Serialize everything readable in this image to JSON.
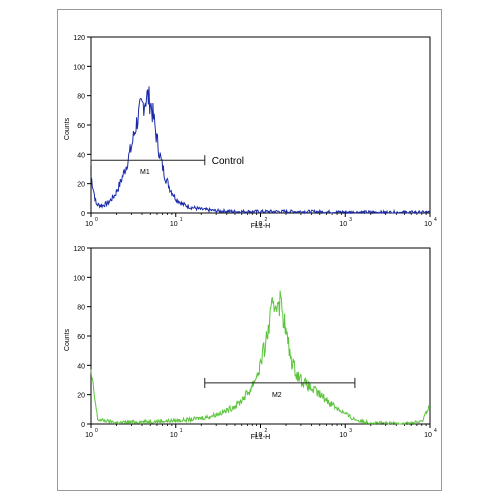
{
  "colors": {
    "top_series": "#1a2aa8",
    "bottom_series": "#5cc43c",
    "axis": "#000000",
    "frame": "#9a9a9a"
  },
  "chart_data": [
    {
      "type": "line",
      "title": "",
      "xlabel": "FL1-H",
      "ylabel": "Counts",
      "x_scale": "log",
      "xlim": [
        1,
        10000
      ],
      "ylim": [
        0,
        120
      ],
      "x_ticks": [
        {
          "base": "10",
          "exp": "0"
        },
        {
          "base": "10",
          "exp": "1"
        },
        {
          "base": "10",
          "exp": "2"
        },
        {
          "base": "10",
          "exp": "3"
        },
        {
          "base": "10",
          "exp": "4"
        }
      ],
      "y_ticks": [
        "0",
        "20",
        "40",
        "60",
        "80",
        "100",
        "120"
      ],
      "gate": {
        "label": "M1",
        "x_start": 1.0,
        "x_end": 22,
        "y": 36
      },
      "annotation": "Control",
      "series": [
        {
          "color": "#1a2aa8",
          "x": [
            1.0,
            1.15,
            1.35,
            1.6,
            1.9,
            2.2,
            2.6,
            3.0,
            3.4,
            3.8,
            4.2,
            4.6,
            5.0,
            5.5,
            6.0,
            6.8,
            7.6,
            8.5,
            10,
            12,
            15,
            20,
            30,
            50,
            100,
            300,
            1000,
            3000,
            10000
          ],
          "y": [
            25,
            6,
            5,
            7,
            12,
            20,
            32,
            45,
            60,
            70,
            75,
            80,
            76,
            64,
            50,
            34,
            24,
            17,
            10,
            6,
            4,
            2.5,
            1.5,
            1,
            1,
            1,
            0.6,
            0.5,
            0.5
          ]
        }
      ]
    },
    {
      "type": "line",
      "title": "",
      "xlabel": "FL1-H",
      "ylabel": "Counts",
      "x_scale": "log",
      "xlim": [
        1,
        10000
      ],
      "ylim": [
        0,
        120
      ],
      "x_ticks": [
        {
          "base": "10",
          "exp": "0"
        },
        {
          "base": "10",
          "exp": "1"
        },
        {
          "base": "10",
          "exp": "2"
        },
        {
          "base": "10",
          "exp": "3"
        },
        {
          "base": "10",
          "exp": "4"
        }
      ],
      "y_ticks": [
        "0",
        "20",
        "40",
        "60",
        "80",
        "100",
        "120"
      ],
      "gate": {
        "label": "M2",
        "x_start": 22,
        "x_end": 1300,
        "y": 28
      },
      "annotation": "",
      "series": [
        {
          "color": "#5cc43c",
          "x": [
            1.0,
            1.2,
            2,
            4,
            8,
            15,
            25,
            40,
            55,
            75,
            95,
            115,
            135,
            160,
            180,
            200,
            230,
            270,
            330,
            400,
            500,
            650,
            800,
            1000,
            1200,
            1500,
            2000,
            3000,
            5000,
            8000,
            10000
          ],
          "y": [
            35,
            3,
            1,
            1.5,
            2,
            3,
            5,
            9,
            14,
            23,
            36,
            55,
            76,
            86,
            80,
            62,
            44,
            34,
            28,
            24,
            20,
            15,
            11,
            7,
            4,
            2,
            1,
            0.5,
            0.5,
            1.5,
            14
          ]
        }
      ]
    }
  ]
}
